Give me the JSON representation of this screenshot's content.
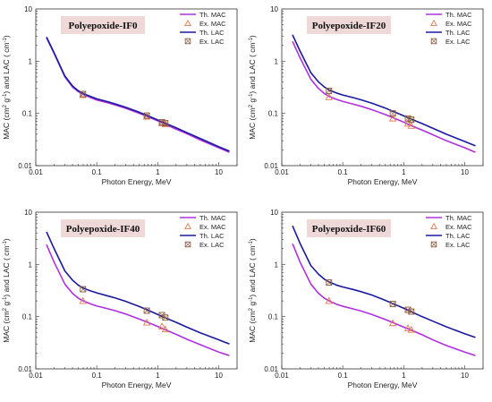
{
  "colors": {
    "th_mac": "#b030e0",
    "th_lac": "#1a1aa0",
    "ex_mac": "#e07a50",
    "ex_lac": "#8b5a3c",
    "title_box": "#eed8d8"
  },
  "chart_data": [
    {
      "type": "line",
      "title": "Polyepoxide-IF0",
      "xlabel": "Photon Energy, MeV",
      "ylabel": "MAC (cm2 g-1) and LAC ( cm-1)",
      "xscale": "log",
      "yscale": "log",
      "xlim": [
        0.01,
        20
      ],
      "ylim": [
        0.01,
        10
      ],
      "xticks": [
        "0.01",
        "0.1",
        "1",
        "10"
      ],
      "yticks": [
        "0.01",
        "0.1",
        "1",
        "10"
      ],
      "legend": [
        "Th. MAC",
        "Ex. MAC",
        "Th. LAC",
        "Ex. LAC"
      ],
      "legend_position": "top-right",
      "series": [
        {
          "name": "Th. MAC",
          "x": [
            0.015,
            0.02,
            0.03,
            0.04,
            0.05,
            0.06,
            0.08,
            0.1,
            0.15,
            0.2,
            0.3,
            0.5,
            0.662,
            1.0,
            1.25,
            2,
            3,
            5,
            10,
            15
          ],
          "y": [
            2.8,
            1.4,
            0.5,
            0.32,
            0.26,
            0.23,
            0.2,
            0.18,
            0.16,
            0.145,
            0.125,
            0.1,
            0.088,
            0.072,
            0.064,
            0.05,
            0.041,
            0.031,
            0.022,
            0.018
          ]
        },
        {
          "name": "Ex. MAC",
          "x": [
            0.0595,
            0.662,
            1.173,
            1.332
          ],
          "y": [
            0.225,
            0.087,
            0.065,
            0.062
          ]
        },
        {
          "name": "Th. LAC",
          "x": [
            0.015,
            0.02,
            0.03,
            0.04,
            0.05,
            0.06,
            0.08,
            0.1,
            0.15,
            0.2,
            0.3,
            0.5,
            0.662,
            1.0,
            1.25,
            2,
            3,
            5,
            10,
            15
          ],
          "y": [
            2.9,
            1.45,
            0.52,
            0.335,
            0.27,
            0.24,
            0.21,
            0.19,
            0.168,
            0.152,
            0.131,
            0.105,
            0.092,
            0.075,
            0.067,
            0.053,
            0.043,
            0.033,
            0.023,
            0.019
          ]
        },
        {
          "name": "Ex. LAC",
          "x": [
            0.0595,
            0.662,
            1.173,
            1.332
          ],
          "y": [
            0.235,
            0.091,
            0.068,
            0.065
          ]
        }
      ]
    },
    {
      "type": "line",
      "title": "Polyepoxide-IF20",
      "xlabel": "Photon Energy, MeV",
      "ylabel": "MAC (cm2 g-1) and LAC ( cm-1)",
      "xscale": "log",
      "yscale": "log",
      "xlim": [
        0.01,
        20
      ],
      "ylim": [
        0.01,
        10
      ],
      "xticks": [
        "0.01",
        "0.1",
        "1",
        "10"
      ],
      "yticks": [
        "0.01",
        "0.1",
        "1",
        "10"
      ],
      "legend": [
        "Th. MAC",
        "Ex. MAC",
        "Th. LAC",
        "Ex. LAC"
      ],
      "legend_position": "top-right",
      "series": [
        {
          "name": "Th. MAC",
          "x": [
            0.015,
            0.02,
            0.03,
            0.04,
            0.05,
            0.06,
            0.08,
            0.1,
            0.15,
            0.2,
            0.3,
            0.5,
            0.662,
            1.0,
            1.25,
            2,
            3,
            5,
            10,
            15
          ],
          "y": [
            2.4,
            1.15,
            0.45,
            0.3,
            0.24,
            0.21,
            0.185,
            0.17,
            0.15,
            0.137,
            0.118,
            0.095,
            0.083,
            0.068,
            0.06,
            0.048,
            0.039,
            0.03,
            0.022,
            0.018
          ]
        },
        {
          "name": "Ex. MAC",
          "x": [
            0.0595,
            0.662,
            1.173,
            1.332
          ],
          "y": [
            0.205,
            0.08,
            0.064,
            0.058
          ]
        },
        {
          "name": "Th. LAC",
          "x": [
            0.015,
            0.02,
            0.03,
            0.04,
            0.05,
            0.06,
            0.08,
            0.1,
            0.15,
            0.2,
            0.3,
            0.5,
            0.662,
            1.0,
            1.25,
            2,
            3,
            5,
            10,
            15
          ],
          "y": [
            3.2,
            1.55,
            0.6,
            0.4,
            0.32,
            0.28,
            0.245,
            0.225,
            0.2,
            0.182,
            0.157,
            0.126,
            0.11,
            0.09,
            0.08,
            0.064,
            0.052,
            0.04,
            0.029,
            0.024
          ]
        },
        {
          "name": "Ex. LAC",
          "x": [
            0.0595,
            0.662,
            1.173,
            1.332
          ],
          "y": [
            0.27,
            0.1,
            0.08,
            0.076
          ]
        }
      ]
    },
    {
      "type": "line",
      "title": "Polyepoxide-IF40",
      "xlabel": "Photon Energy, MeV",
      "ylabel": "MAC (cm2 g-1) and LAC ( cm-1)",
      "xscale": "log",
      "yscale": "log",
      "xlim": [
        0.01,
        20
      ],
      "ylim": [
        0.01,
        10
      ],
      "xticks": [
        "0.01",
        "0.1",
        "1",
        "10"
      ],
      "yticks": [
        "0.01",
        "0.1",
        "1",
        "10"
      ],
      "legend": [
        "Th. MAC",
        "Ex. MAC",
        "Th. LAC",
        "Ex. LAC"
      ],
      "legend_position": "top-right",
      "series": [
        {
          "name": "Th. MAC",
          "x": [
            0.015,
            0.02,
            0.03,
            0.04,
            0.05,
            0.06,
            0.08,
            0.1,
            0.15,
            0.2,
            0.3,
            0.5,
            0.662,
            1.0,
            1.25,
            2,
            3,
            5,
            10,
            15
          ],
          "y": [
            2.4,
            1.1,
            0.42,
            0.28,
            0.225,
            0.2,
            0.175,
            0.16,
            0.142,
            0.13,
            0.112,
            0.09,
            0.079,
            0.065,
            0.058,
            0.046,
            0.037,
            0.029,
            0.021,
            0.018
          ]
        },
        {
          "name": "Ex. MAC",
          "x": [
            0.0595,
            0.662,
            1.173,
            1.332
          ],
          "y": [
            0.2,
            0.077,
            0.065,
            0.057
          ]
        },
        {
          "name": "Th. LAC",
          "x": [
            0.015,
            0.02,
            0.03,
            0.04,
            0.05,
            0.06,
            0.08,
            0.1,
            0.15,
            0.2,
            0.3,
            0.5,
            0.662,
            1.0,
            1.25,
            2,
            3,
            5,
            10,
            15
          ],
          "y": [
            4.2,
            2.0,
            0.75,
            0.5,
            0.4,
            0.35,
            0.31,
            0.285,
            0.25,
            0.228,
            0.196,
            0.156,
            0.136,
            0.11,
            0.098,
            0.078,
            0.063,
            0.049,
            0.036,
            0.03
          ]
        },
        {
          "name": "Ex. LAC",
          "x": [
            0.0595,
            0.662,
            1.173,
            1.332
          ],
          "y": [
            0.335,
            0.13,
            0.107,
            0.096
          ]
        }
      ]
    },
    {
      "type": "line",
      "title": "Polyepoxide-IF60",
      "xlabel": "Photon Energy, MeV",
      "ylabel": "MAC (cm2 g-1) and LAC ( cm-1)",
      "xscale": "log",
      "yscale": "log",
      "xlim": [
        0.01,
        20
      ],
      "ylim": [
        0.01,
        10
      ],
      "xticks": [
        "0.01",
        "0.1",
        "1",
        "10"
      ],
      "yticks": [
        "0.01",
        "0.1",
        "1",
        "10"
      ],
      "legend": [
        "Th. MAC",
        "Ex. MAC",
        "Th. LAC",
        "Ex. LAC"
      ],
      "legend_position": "top-right",
      "series": [
        {
          "name": "Th. MAC",
          "x": [
            0.015,
            0.02,
            0.03,
            0.04,
            0.05,
            0.06,
            0.08,
            0.1,
            0.15,
            0.2,
            0.3,
            0.5,
            0.662,
            1.0,
            1.25,
            2,
            3,
            5,
            10,
            15
          ],
          "y": [
            2.5,
            1.1,
            0.42,
            0.28,
            0.225,
            0.2,
            0.172,
            0.158,
            0.14,
            0.128,
            0.11,
            0.088,
            0.077,
            0.063,
            0.057,
            0.045,
            0.036,
            0.028,
            0.021,
            0.018
          ]
        },
        {
          "name": "Ex. MAC",
          "x": [
            0.0595,
            0.662,
            1.173,
            1.332
          ],
          "y": [
            0.2,
            0.075,
            0.06,
            0.056
          ]
        },
        {
          "name": "Th. LAC",
          "x": [
            0.015,
            0.02,
            0.03,
            0.04,
            0.05,
            0.06,
            0.08,
            0.1,
            0.15,
            0.2,
            0.3,
            0.5,
            0.662,
            1.0,
            1.25,
            2,
            3,
            5,
            10,
            15
          ],
          "y": [
            5.5,
            2.5,
            0.95,
            0.65,
            0.52,
            0.46,
            0.4,
            0.37,
            0.33,
            0.3,
            0.26,
            0.205,
            0.178,
            0.145,
            0.128,
            0.1,
            0.082,
            0.064,
            0.047,
            0.04
          ]
        },
        {
          "name": "Ex. LAC",
          "x": [
            0.0595,
            0.662,
            1.173,
            1.332
          ],
          "y": [
            0.45,
            0.175,
            0.135,
            0.125
          ]
        }
      ]
    }
  ]
}
